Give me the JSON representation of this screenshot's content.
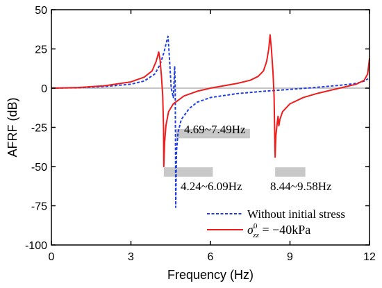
{
  "chart_data": {
    "type": "line",
    "xlabel": "Frequency (Hz)",
    "ylabel": "AFRF (dB)",
    "xlim": [
      0,
      12
    ],
    "ylim": [
      -100,
      50
    ],
    "xticks": [
      0,
      3,
      6,
      9,
      12
    ],
    "yticks": [
      50,
      25,
      0,
      -25,
      -50,
      -75,
      -100
    ],
    "xtick_labels": [
      "0",
      "3",
      "6",
      "9",
      "12"
    ],
    "ytick_labels": [
      "50",
      "25",
      "0",
      "-25",
      "-50",
      "-75",
      "-100"
    ],
    "grid": false,
    "reference_line": {
      "y": 0,
      "color": "#b0b0b0"
    },
    "legend": {
      "placement": "bottom-right",
      "entries": [
        {
          "series": "blue",
          "label": "Without initial stress"
        },
        {
          "series": "red",
          "label_prefix": "σ",
          "label_sup": "0",
          "label_sub": "zz",
          "label_suffix": " = −40kPa"
        }
      ]
    },
    "series": [
      {
        "id": "blue",
        "name": "Without initial stress",
        "color": "#1f3fe0",
        "style": "dashed",
        "points": [
          [
            0,
            0
          ],
          [
            1,
            0.3
          ],
          [
            2,
            1
          ],
          [
            3,
            2.5
          ],
          [
            3.5,
            4.5
          ],
          [
            3.9,
            9
          ],
          [
            4.1,
            15
          ],
          [
            4.25,
            23
          ],
          [
            4.35,
            30
          ],
          [
            4.4,
            33
          ],
          [
            4.45,
            20
          ],
          [
            4.52,
            0
          ],
          [
            4.6,
            -6
          ],
          [
            4.63,
            5
          ],
          [
            4.65,
            14
          ],
          [
            4.67,
            3
          ],
          [
            4.68,
            -30
          ],
          [
            4.69,
            -76
          ],
          [
            4.72,
            -40
          ],
          [
            4.78,
            -28
          ],
          [
            4.9,
            -20
          ],
          [
            5.2,
            -13
          ],
          [
            5.5,
            -9
          ],
          [
            6,
            -6
          ],
          [
            7,
            -3.5
          ],
          [
            8,
            -2
          ],
          [
            9,
            -0.8
          ],
          [
            10,
            0.5
          ],
          [
            11,
            2
          ],
          [
            11.5,
            3
          ],
          [
            11.8,
            4.5
          ],
          [
            11.95,
            6
          ]
        ]
      },
      {
        "id": "red",
        "name": "σzz0 = −40kPa",
        "color": "#ee1c1c",
        "style": "solid",
        "points": [
          [
            0,
            0
          ],
          [
            1,
            0.4
          ],
          [
            2,
            1.5
          ],
          [
            3,
            4
          ],
          [
            3.5,
            7
          ],
          [
            3.8,
            11
          ],
          [
            3.95,
            17
          ],
          [
            4.05,
            23
          ],
          [
            4.1,
            18
          ],
          [
            4.15,
            8
          ],
          [
            4.2,
            -5
          ],
          [
            4.23,
            -25
          ],
          [
            4.24,
            -50
          ],
          [
            4.27,
            -35
          ],
          [
            4.32,
            -24
          ],
          [
            4.42,
            -15
          ],
          [
            4.6,
            -10
          ],
          [
            5,
            -5
          ],
          [
            5.5,
            -2
          ],
          [
            6,
            0
          ],
          [
            6.5,
            1.5
          ],
          [
            7,
            3
          ],
          [
            7.5,
            5
          ],
          [
            7.8,
            7.5
          ],
          [
            8,
            11
          ],
          [
            8.12,
            17
          ],
          [
            8.2,
            25
          ],
          [
            8.25,
            34
          ],
          [
            8.3,
            25
          ],
          [
            8.36,
            10
          ],
          [
            8.4,
            -5
          ],
          [
            8.42,
            -25
          ],
          [
            8.44,
            -44
          ],
          [
            8.47,
            -30
          ],
          [
            8.52,
            -22
          ],
          [
            8.55,
            -18
          ],
          [
            8.58,
            -24
          ],
          [
            8.62,
            -20
          ],
          [
            8.72,
            -15
          ],
          [
            9,
            -10
          ],
          [
            9.5,
            -6
          ],
          [
            10,
            -3.5
          ],
          [
            10.5,
            -1.5
          ],
          [
            11,
            0.5
          ],
          [
            11.5,
            2.5
          ],
          [
            11.8,
            5
          ],
          [
            11.93,
            9
          ],
          [
            12,
            19
          ]
        ]
      }
    ],
    "annotations": [
      {
        "label": "4.69~7.49Hz",
        "band": [
          4.69,
          7.49
        ],
        "band_y": -29,
        "band_h": 6,
        "label_pos": "below-band"
      },
      {
        "label": "4.24~6.09Hz",
        "band": [
          4.24,
          6.09
        ],
        "band_y": -53.5,
        "band_h": 6,
        "label_pos": "below-band-offset"
      },
      {
        "label": "8.44~9.58Hz",
        "band": [
          8.44,
          9.58
        ],
        "band_y": -53.5,
        "band_h": 6,
        "label_pos": "below-band"
      }
    ]
  }
}
